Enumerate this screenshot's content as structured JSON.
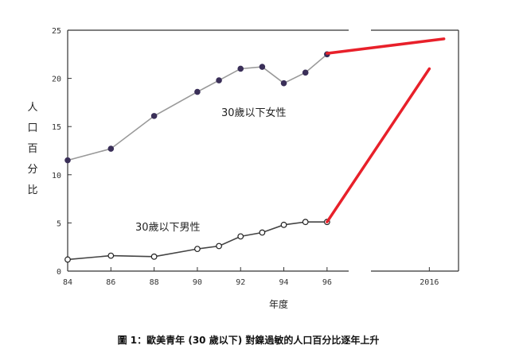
{
  "chart_data": {
    "type": "line",
    "ylabel": "人口百分比",
    "xlabel": "年度",
    "caption": "圖 1：歐美青年 (30 歲以下) 對鎳過敏的人口百分比逐年上升",
    "ylim": [
      0,
      25
    ],
    "y_ticks": [
      "0",
      "5",
      "10",
      "15",
      "20",
      "25"
    ],
    "x_ticks_left": [
      "84",
      "86",
      "88",
      "90",
      "92",
      "94",
      "96"
    ],
    "x_ticks_right": [
      "2016"
    ],
    "x_range_left": [
      84,
      97
    ],
    "x_range_right": [
      2012,
      2018
    ],
    "series": [
      {
        "name": "30歲以下女性",
        "color": "#999999",
        "marker": "filled",
        "x": [
          84,
          86,
          88,
          90,
          91,
          92,
          93,
          94,
          95,
          96
        ],
        "values": [
          11.5,
          12.7,
          16.1,
          18.6,
          19.8,
          21.0,
          21.2,
          19.5,
          20.6,
          22.5
        ]
      },
      {
        "name": "30歲以下男性",
        "color": "#444444",
        "marker": "open",
        "x": [
          84,
          86,
          88,
          90,
          91,
          92,
          93,
          94,
          95,
          96
        ],
        "values": [
          1.2,
          1.6,
          1.5,
          2.3,
          2.6,
          3.6,
          4.0,
          4.8,
          5.1,
          5.1
        ]
      }
    ],
    "projections": [
      {
        "color": "#e8202a",
        "from": [
          96,
          22.6
        ],
        "to": [
          2017,
          24.1
        ]
      },
      {
        "color": "#e8202a",
        "from": [
          96,
          5.1
        ],
        "to": [
          2016,
          21.0
        ]
      }
    ]
  }
}
